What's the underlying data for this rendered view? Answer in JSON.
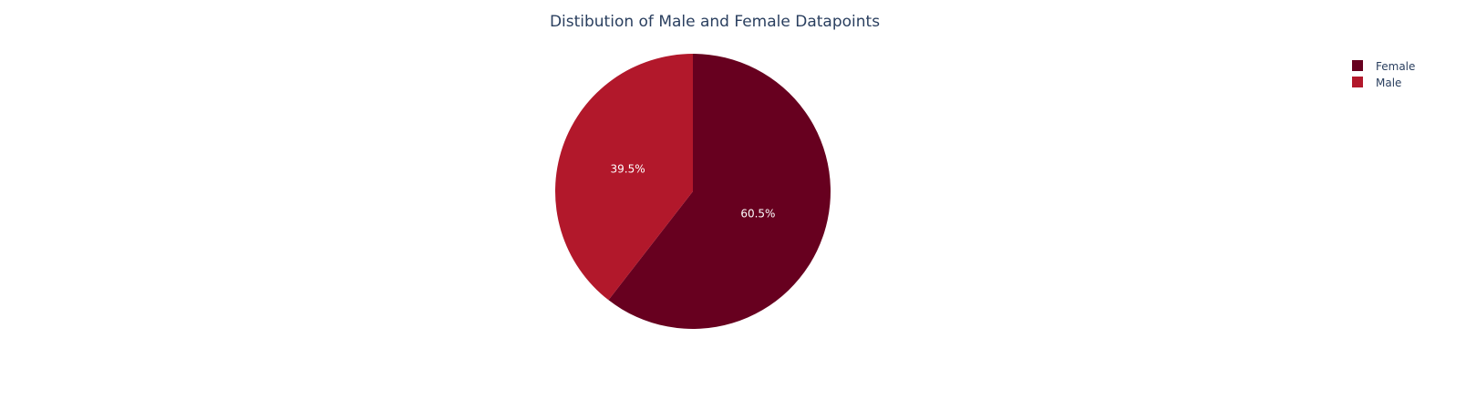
{
  "chart_data": {
    "type": "pie",
    "title": "Distibution of Male and Female Datapoints",
    "slices": [
      {
        "label": "Female",
        "percent": 60.5,
        "percent_label": "60.5%",
        "color": "#67001f"
      },
      {
        "label": "Male",
        "percent": 39.5,
        "percent_label": "39.5%",
        "color": "#b2182b"
      }
    ],
    "direction": "clockwise",
    "start_angle_deg": 90,
    "legend": {
      "placement": "top-right",
      "items": [
        "Female",
        "Male"
      ]
    }
  }
}
